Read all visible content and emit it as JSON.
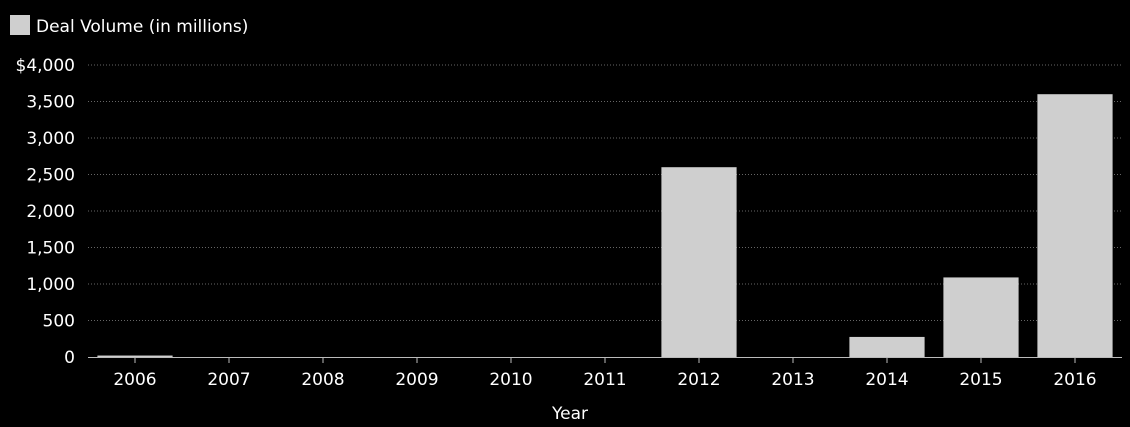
{
  "chart_data": {
    "type": "bar",
    "legend": {
      "label": "Deal Volume (in millions)",
      "placement": "top-left"
    },
    "xlabel": "Year",
    "ylabel": "",
    "categories": [
      "2006",
      "2007",
      "2008",
      "2009",
      "2010",
      "2011",
      "2012",
      "2013",
      "2014",
      "2015",
      "2016"
    ],
    "values": [
      20,
      0,
      0,
      0,
      0,
      0,
      2600,
      0,
      275,
      1090,
      3600
    ],
    "ylim": [
      0,
      4000
    ],
    "yticks": [
      0,
      500,
      1000,
      1500,
      2000,
      2500,
      3000,
      3500,
      4000
    ],
    "ytick_labels": [
      "0",
      "500",
      "1,000",
      "1,500",
      "2,000",
      "2,500",
      "3,000",
      "3,500",
      "$4,000"
    ],
    "grid": true,
    "colors": {
      "background": "#000000",
      "bar": "#cfcfcf",
      "text": "#ffffff",
      "grid": "#666666",
      "axis": "#bbbbbb"
    }
  }
}
